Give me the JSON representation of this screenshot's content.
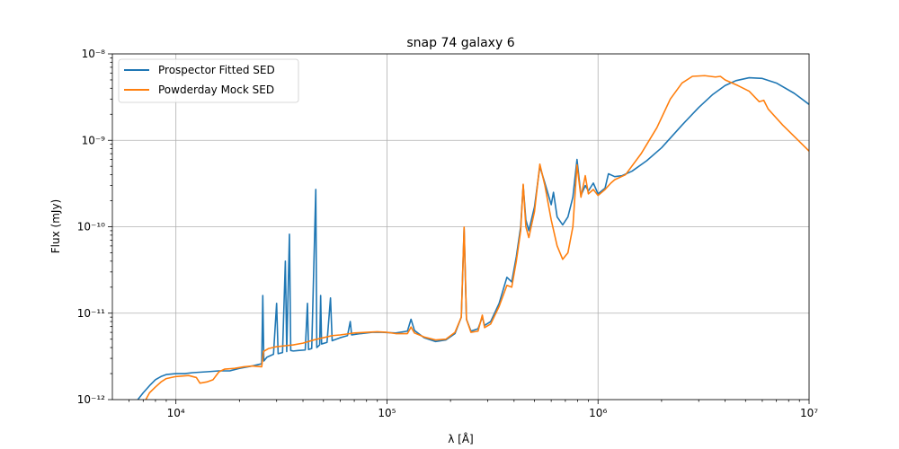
{
  "chart_data": {
    "type": "line",
    "title": "snap 74 galaxy 6",
    "xlabel": "λ [Å]",
    "ylabel": "Flux (mJy)",
    "xscale": "log",
    "yscale": "log",
    "xlim": [
      5000,
      10000000
    ],
    "ylim": [
      1e-12,
      1e-08
    ],
    "grid": true,
    "legend_position": "upper-left",
    "x_ticks": [
      {
        "value": 10000,
        "label": "10⁴"
      },
      {
        "value": 100000,
        "label": "10⁵"
      },
      {
        "value": 1000000,
        "label": "10⁶"
      },
      {
        "value": 10000000,
        "label": "10⁷"
      }
    ],
    "y_ticks": [
      {
        "value": 1e-12,
        "label": "10⁻¹²"
      },
      {
        "value": 1e-11,
        "label": "10⁻¹¹"
      },
      {
        "value": 1e-10,
        "label": "10⁻¹⁰"
      },
      {
        "value": 1e-09,
        "label": "10⁻⁹"
      },
      {
        "value": 1e-08,
        "label": "10⁻⁸"
      }
    ],
    "series": [
      {
        "name": "Prospector Fitted SED",
        "color": "#1f77b4",
        "points": [
          [
            6600,
            1e-12
          ],
          [
            7000,
            1.2e-12
          ],
          [
            7500,
            1.45e-12
          ],
          [
            8000,
            1.7e-12
          ],
          [
            8500,
            1.85e-12
          ],
          [
            9000,
            1.95e-12
          ],
          [
            10000,
            2e-12
          ],
          [
            11000,
            2e-12
          ],
          [
            12000,
            2.05e-12
          ],
          [
            14000,
            2.1e-12
          ],
          [
            16000,
            2.15e-12
          ],
          [
            18000,
            2.15e-12
          ],
          [
            20000,
            2.3e-12
          ],
          [
            23000,
            2.45e-12
          ],
          [
            25500,
            2.6e-12
          ],
          [
            25800,
            1.6e-11
          ],
          [
            26100,
            2.8e-12
          ],
          [
            27000,
            3.1e-12
          ],
          [
            29000,
            3.35e-12
          ],
          [
            30000,
            1.3e-11
          ],
          [
            30500,
            3.4e-12
          ],
          [
            32000,
            3.5e-12
          ],
          [
            33000,
            4e-11
          ],
          [
            33500,
            3.6e-12
          ],
          [
            34500,
            8.2e-11
          ],
          [
            35000,
            3.7e-12
          ],
          [
            36000,
            3.65e-12
          ],
          [
            38000,
            3.7e-12
          ],
          [
            41000,
            3.75e-12
          ],
          [
            42000,
            1.3e-11
          ],
          [
            42500,
            3.8e-12
          ],
          [
            44000,
            3.9e-12
          ],
          [
            46000,
            2.7e-10
          ],
          [
            46500,
            4e-12
          ],
          [
            48000,
            4.3e-12
          ],
          [
            48500,
            1.6e-11
          ],
          [
            49000,
            4.4e-12
          ],
          [
            52000,
            4.6e-12
          ],
          [
            54000,
            1.5e-11
          ],
          [
            55000,
            4.8e-12
          ],
          [
            60000,
            5.2e-12
          ],
          [
            65000,
            5.5e-12
          ],
          [
            67000,
            8e-12
          ],
          [
            68000,
            5.6e-12
          ],
          [
            75000,
            5.8e-12
          ],
          [
            85000,
            6e-12
          ],
          [
            95000,
            6e-12
          ],
          [
            110000,
            5.9e-12
          ],
          [
            125000,
            6.2e-12
          ],
          [
            130000,
            8.5e-12
          ],
          [
            135000,
            6.3e-12
          ],
          [
            150000,
            5.2e-12
          ],
          [
            170000,
            4.7e-12
          ],
          [
            190000,
            4.9e-12
          ],
          [
            210000,
            5.8e-12
          ],
          [
            225000,
            9e-12
          ],
          [
            232000,
            9.5e-11
          ],
          [
            238000,
            8.5e-12
          ],
          [
            250000,
            6.2e-12
          ],
          [
            270000,
            6.6e-12
          ],
          [
            283000,
            9e-12
          ],
          [
            290000,
            7.2e-12
          ],
          [
            310000,
            8e-12
          ],
          [
            340000,
            1.3e-11
          ],
          [
            370000,
            2.6e-11
          ],
          [
            390000,
            2.3e-11
          ],
          [
            410000,
            4.5e-11
          ],
          [
            430000,
            1e-10
          ],
          [
            442000,
            3e-10
          ],
          [
            455000,
            1.2e-10
          ],
          [
            470000,
            9e-11
          ],
          [
            500000,
            1.7e-10
          ],
          [
            530000,
            5e-10
          ],
          [
            560000,
            3.2e-10
          ],
          [
            600000,
            1.8e-10
          ],
          [
            615000,
            2.5e-10
          ],
          [
            640000,
            1.3e-10
          ],
          [
            680000,
            1.05e-10
          ],
          [
            720000,
            1.3e-10
          ],
          [
            760000,
            2.2e-10
          ],
          [
            795000,
            6e-10
          ],
          [
            830000,
            2.3e-10
          ],
          [
            870000,
            3e-10
          ],
          [
            900000,
            2.6e-10
          ],
          [
            950000,
            3.2e-10
          ],
          [
            1000000,
            2.4e-10
          ],
          [
            1080000,
            2.8e-10
          ],
          [
            1120000,
            4.1e-10
          ],
          [
            1200000,
            3.8e-10
          ],
          [
            1300000,
            3.9e-10
          ],
          [
            1450000,
            4.4e-10
          ],
          [
            1700000,
            5.8e-10
          ],
          [
            2000000,
            8.2e-10
          ],
          [
            2500000,
            1.5e-09
          ],
          [
            3000000,
            2.4e-09
          ],
          [
            3500000,
            3.4e-09
          ],
          [
            4000000,
            4.3e-09
          ],
          [
            4500000,
            4.9e-09
          ],
          [
            5200000,
            5.3e-09
          ],
          [
            6000000,
            5.2e-09
          ],
          [
            7000000,
            4.6e-09
          ],
          [
            8500000,
            3.5e-09
          ],
          [
            10000000,
            2.6e-09
          ]
        ]
      },
      {
        "name": "Powderday Mock SED",
        "color": "#ff7f0e",
        "points": [
          [
            7200,
            1e-12
          ],
          [
            7500,
            1.2e-12
          ],
          [
            8000,
            1.4e-12
          ],
          [
            8500,
            1.6e-12
          ],
          [
            9000,
            1.75e-12
          ],
          [
            10000,
            1.85e-12
          ],
          [
            11500,
            1.9e-12
          ],
          [
            12500,
            1.8e-12
          ],
          [
            13000,
            1.55e-12
          ],
          [
            14000,
            1.6e-12
          ],
          [
            15000,
            1.7e-12
          ],
          [
            16000,
            2.1e-12
          ],
          [
            17000,
            2.25e-12
          ],
          [
            19000,
            2.3e-12
          ],
          [
            21000,
            2.4e-12
          ],
          [
            23000,
            2.45e-12
          ],
          [
            25500,
            2.4e-12
          ],
          [
            26000,
            3.6e-12
          ],
          [
            27500,
            3.9e-12
          ],
          [
            30000,
            4.1e-12
          ],
          [
            33000,
            4.2e-12
          ],
          [
            36000,
            4.3e-12
          ],
          [
            40000,
            4.5e-12
          ],
          [
            45000,
            4.9e-12
          ],
          [
            50000,
            5.2e-12
          ],
          [
            55000,
            5.5e-12
          ],
          [
            60000,
            5.6e-12
          ],
          [
            70000,
            5.9e-12
          ],
          [
            80000,
            6e-12
          ],
          [
            90000,
            6.1e-12
          ],
          [
            100000,
            6e-12
          ],
          [
            110000,
            5.8e-12
          ],
          [
            125000,
            5.8e-12
          ],
          [
            130000,
            6.9e-12
          ],
          [
            135000,
            5.9e-12
          ],
          [
            150000,
            5.3e-12
          ],
          [
            170000,
            4.9e-12
          ],
          [
            190000,
            5e-12
          ],
          [
            210000,
            6e-12
          ],
          [
            225000,
            9e-12
          ],
          [
            232000,
            9.9e-11
          ],
          [
            238000,
            8.5e-12
          ],
          [
            250000,
            6e-12
          ],
          [
            270000,
            6.2e-12
          ],
          [
            283000,
            9.5e-12
          ],
          [
            290000,
            6.8e-12
          ],
          [
            310000,
            7.5e-12
          ],
          [
            340000,
            1.2e-11
          ],
          [
            370000,
            2.1e-11
          ],
          [
            390000,
            2e-11
          ],
          [
            410000,
            4e-11
          ],
          [
            430000,
            9e-11
          ],
          [
            442000,
            3.1e-10
          ],
          [
            455000,
            1e-10
          ],
          [
            470000,
            7.5e-11
          ],
          [
            500000,
            1.5e-10
          ],
          [
            530000,
            5.3e-10
          ],
          [
            560000,
            3e-10
          ],
          [
            600000,
            1.2e-10
          ],
          [
            640000,
            6e-11
          ],
          [
            680000,
            4.2e-11
          ],
          [
            720000,
            5e-11
          ],
          [
            760000,
            1e-10
          ],
          [
            795000,
            5.2e-10
          ],
          [
            830000,
            2.2e-10
          ],
          [
            870000,
            3.9e-10
          ],
          [
            900000,
            2.4e-10
          ],
          [
            950000,
            2.7e-10
          ],
          [
            1000000,
            2.3e-10
          ],
          [
            1080000,
            2.7e-10
          ],
          [
            1150000,
            3.2e-10
          ],
          [
            1200000,
            3.5e-10
          ],
          [
            1350000,
            4e-10
          ],
          [
            1600000,
            7e-10
          ],
          [
            1900000,
            1.4e-09
          ],
          [
            2200000,
            3e-09
          ],
          [
            2500000,
            4.6e-09
          ],
          [
            2800000,
            5.5e-09
          ],
          [
            3200000,
            5.6e-09
          ],
          [
            3600000,
            5.4e-09
          ],
          [
            3800000,
            5.5e-09
          ],
          [
            4000000,
            5e-09
          ],
          [
            4600000,
            4.3e-09
          ],
          [
            5200000,
            3.7e-09
          ],
          [
            5800000,
            2.8e-09
          ],
          [
            6100000,
            2.9e-09
          ],
          [
            6400000,
            2.3e-09
          ],
          [
            7500000,
            1.5e-09
          ],
          [
            8700000,
            1.05e-09
          ],
          [
            10000000,
            7.5e-10
          ]
        ]
      }
    ]
  }
}
